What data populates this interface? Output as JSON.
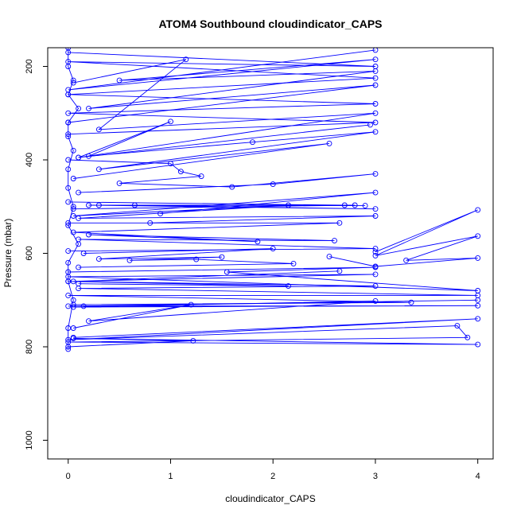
{
  "chart_data": {
    "type": "line",
    "title": "ATOM4 Southbound cloudindicator_CAPS",
    "xlabel": "cloudindicator_CAPS",
    "ylabel": "Pressure (mbar)",
    "xlim": [
      -0.2,
      4.15
    ],
    "ylim": [
      1040,
      160
    ],
    "y_reversed": true,
    "xticks": [
      0,
      1,
      2,
      3,
      4
    ],
    "yticks": [
      200,
      400,
      600,
      800,
      1000
    ],
    "marker": "open-circle",
    "series_color": "#0000ff",
    "series": [
      {
        "x": [
          0.0,
          0.0,
          0.05,
          0.0,
          0.1,
          0.0,
          0.0,
          0.05,
          0.0,
          0.0,
          0.05,
          0.0,
          0.1,
          0.0,
          0.0,
          0.05,
          0.0,
          0.0
        ],
        "y": [
          160,
          200,
          230,
          260,
          290,
          320,
          350,
          380,
          420,
          460,
          500,
          540,
          580,
          620,
          660,
          700,
          760,
          805
        ]
      },
      {
        "x": [
          3,
          0,
          3,
          0.5,
          3,
          0.2,
          3,
          0
        ],
        "y": [
          165,
          250,
          185,
          230,
          210,
          290,
          240,
          320
        ]
      },
      {
        "x": [
          0,
          3,
          0,
          3,
          0,
          3,
          0,
          3,
          0
        ],
        "y": [
          170,
          200,
          190,
          225,
          260,
          280,
          300,
          320,
          345
        ]
      },
      {
        "x": [
          0.05,
          1.15,
          0.3,
          3,
          0.1,
          2.95
        ],
        "y": [
          235,
          185,
          335,
          300,
          395,
          325
        ]
      },
      {
        "x": [
          0.1,
          1.0,
          0.2,
          1.8,
          3,
          0.3,
          2.55,
          0.05
        ],
        "y": [
          395,
          318,
          392,
          362,
          340,
          420,
          365,
          440
        ]
      },
      {
        "x": [
          0,
          1.0,
          1.1,
          1.3,
          0.5,
          1.6,
          3,
          2.0,
          0.1
        ],
        "y": [
          400,
          408,
          425,
          435,
          450,
          458,
          430,
          452,
          470
        ]
      },
      {
        "x": [
          0,
          2.7,
          0.3,
          2.9,
          0.2,
          3,
          0.65,
          2.8,
          0.05
        ],
        "y": [
          490,
          497,
          497,
          498,
          497,
          505,
          497,
          497,
          505
        ]
      },
      {
        "x": [
          0.9,
          3,
          0.05,
          2.15,
          0.1,
          3,
          0.8
        ],
        "y": [
          515,
          470,
          520,
          497,
          525,
          520,
          535
        ]
      },
      {
        "x": [
          0,
          2.65,
          0.05,
          1.85,
          0.2,
          2.6,
          0.1,
          3,
          0
        ],
        "y": [
          535,
          535,
          555,
          575,
          560,
          573,
          570,
          590,
          595
        ]
      },
      {
        "x": [
          3,
          4,
          3,
          4,
          3.3,
          4,
          3,
          2.55
        ],
        "y": [
          597,
          507,
          605,
          563,
          615,
          610,
          628,
          607
        ]
      },
      {
        "x": [
          0.15,
          2.0,
          0.3,
          1.5,
          0.6,
          1.25,
          2.2,
          0.1
        ],
        "y": [
          600,
          590,
          612,
          608,
          615,
          613,
          622,
          630
        ]
      },
      {
        "x": [
          0,
          3,
          1.55,
          4,
          0,
          3,
          0.05,
          2.65
        ],
        "y": [
          640,
          630,
          640,
          680,
          650,
          645,
          660,
          638
        ]
      },
      {
        "x": [
          0.1,
          2.15,
          0.0,
          3,
          0.1,
          4,
          0,
          3.35,
          0.05
        ],
        "y": [
          665,
          670,
          660,
          670,
          675,
          690,
          690,
          705,
          710
        ]
      },
      {
        "x": [
          0,
          4,
          0.15,
          4,
          0.05,
          3,
          0.2,
          1.2,
          0.05
        ],
        "y": [
          713,
          700,
          713,
          712,
          715,
          702,
          745,
          710,
          760
        ]
      },
      {
        "x": [
          0.05,
          4,
          0.0,
          3.8,
          3.9,
          0.0,
          4,
          0.05,
          1.22,
          0.0
        ],
        "y": [
          780,
          740,
          785,
          755,
          780,
          790,
          795,
          782,
          787,
          800
        ]
      }
    ]
  }
}
